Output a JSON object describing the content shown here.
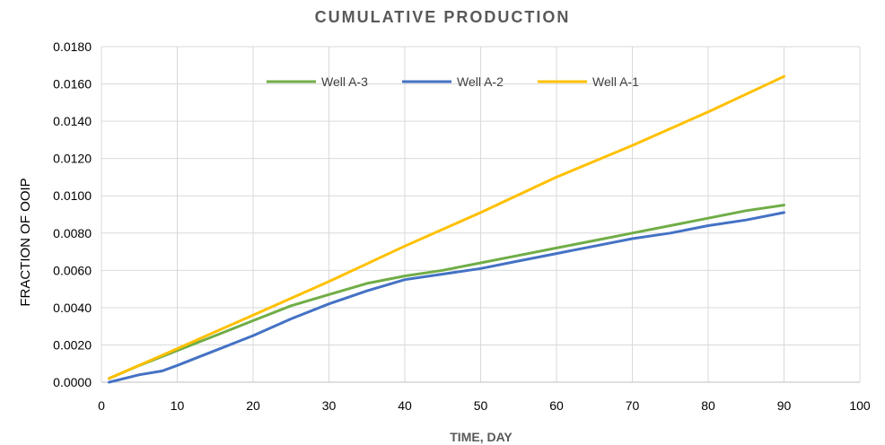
{
  "chart_data": {
    "type": "line",
    "title": "CUMULATIVE PRODUCTION",
    "xlabel": "TIME, DAY",
    "ylabel": "FRACTION OF OOIP",
    "xlim": [
      0,
      100
    ],
    "ylim": [
      0,
      0.018
    ],
    "x_ticks": [
      0,
      10,
      20,
      30,
      40,
      50,
      60,
      70,
      80,
      90,
      100
    ],
    "y_ticks": [
      "0.0000",
      "0.0020",
      "0.0040",
      "0.0060",
      "0.0080",
      "0.0100",
      "0.0120",
      "0.0140",
      "0.0160",
      "0.0180"
    ],
    "grid": true,
    "legend_position": "top",
    "series": [
      {
        "name": "Well A-3",
        "color": "#70ad47",
        "x": [
          1,
          5,
          10,
          15,
          20,
          25,
          30,
          35,
          40,
          45,
          50,
          55,
          60,
          65,
          70,
          75,
          80,
          85,
          90
        ],
        "y": [
          0.0002,
          0.0009,
          0.0017,
          0.0025,
          0.0033,
          0.0041,
          0.0047,
          0.0053,
          0.0057,
          0.006,
          0.0064,
          0.0068,
          0.0072,
          0.0076,
          0.008,
          0.0084,
          0.0088,
          0.0092,
          0.0095
        ]
      },
      {
        "name": "Well A-2",
        "color": "#4472c4",
        "x": [
          1,
          5,
          8,
          10,
          15,
          20,
          25,
          30,
          35,
          40,
          45,
          50,
          55,
          60,
          65,
          70,
          75,
          80,
          85,
          90
        ],
        "y": [
          0.0,
          0.0004,
          0.0006,
          0.0009,
          0.0017,
          0.0025,
          0.0034,
          0.0042,
          0.0049,
          0.0055,
          0.0058,
          0.0061,
          0.0065,
          0.0069,
          0.0073,
          0.0077,
          0.008,
          0.0084,
          0.0087,
          0.0091
        ]
      },
      {
        "name": "Well A-1",
        "color": "#ffc000",
        "x": [
          1,
          10,
          20,
          30,
          40,
          50,
          60,
          70,
          80,
          90
        ],
        "y": [
          0.0002,
          0.0018,
          0.0036,
          0.0054,
          0.0073,
          0.0091,
          0.011,
          0.0127,
          0.0145,
          0.0164
        ]
      }
    ]
  }
}
